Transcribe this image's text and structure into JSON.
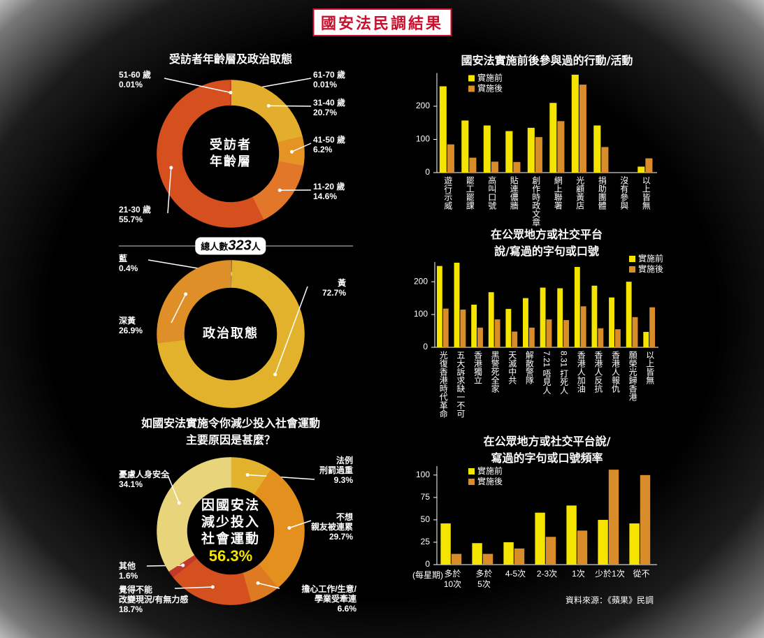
{
  "title": "國安法民調結果",
  "source": "資料來源：《蘋果》民調",
  "chart_data": [
    {
      "type": "donut",
      "title": "受訪者年齡層及政治取態",
      "center_label": "受訪者\n年齡層",
      "categories": [
        "61-70 歲",
        "31-40 歲",
        "41-50 歲",
        "11-20 歲",
        "21-30 歲",
        "51-60 歲"
      ],
      "values": [
        0.01,
        20.7,
        6.2,
        14.6,
        55.7,
        0.01
      ],
      "value_labels": [
        "0.01%",
        "20.7%",
        "6.2%",
        "14.6%",
        "55.7%",
        "0.01%"
      ],
      "colors": [
        "#c0392b",
        "#e3ae2c",
        "#e69326",
        "#e2772a",
        "#d6501f",
        "#c0392b"
      ]
    },
    {
      "type": "donut",
      "total_prefix": "總人數",
      "total": 323,
      "total_suffix": "人",
      "center_label": "政治取態",
      "categories": [
        "藍",
        "黃",
        "深黃"
      ],
      "values": [
        0.4,
        72.7,
        26.9
      ],
      "value_labels": [
        "0.4%",
        "72.7%",
        "26.9%"
      ],
      "colors": [
        "#2d6fb5",
        "#e3b22c",
        "#df8f28"
      ]
    },
    {
      "type": "donut",
      "title": "如國安法實施令你減少投入社會運動\n主要原因是甚麼？",
      "center_label": "因國安法\n減少投入\n社會運動",
      "center_value": 56.3,
      "center_value_label": "56.3%",
      "categories": [
        "法例\n刑罰過重",
        "不想\n親友被連累",
        "擔心工作/生意/\n學業受牽連",
        "覺得不能\n改變現況/有無力感",
        "其他",
        "憂慮人身安全"
      ],
      "values": [
        9.3,
        29.7,
        6.6,
        18.7,
        1.6,
        34.1
      ],
      "value_labels": [
        "9.3%",
        "29.7%",
        "6.6%",
        "18.7%",
        "1.6%",
        "34.1%"
      ],
      "colors": [
        "#e3b22c",
        "#e3901f",
        "#dd7a22",
        "#d5501f",
        "#c0392b",
        "#e8d47a"
      ]
    },
    {
      "type": "bar",
      "title": "國安法實施前後參與過的行動/活動",
      "categories": [
        "遊行示威",
        "罷工罷課",
        "高叫口號",
        "貼連儂牆",
        "創作時政文章",
        "網上聯署",
        "光顧黃店",
        "捐助團體",
        "沒有參與",
        "以上皆無"
      ],
      "series": [
        {
          "name": "實施前",
          "color": "#f5e400",
          "values": [
            260,
            157,
            142,
            125,
            135,
            210,
            295,
            142,
            null,
            18
          ]
        },
        {
          "name": "實施後",
          "color": "#d98c2a",
          "values": [
            85,
            45,
            33,
            32,
            107,
            155,
            265,
            77,
            null,
            43
          ]
        }
      ],
      "ylim": [
        0,
        300
      ],
      "yticks": [
        0,
        100,
        200
      ],
      "legend": "upper left"
    },
    {
      "type": "bar",
      "title": "在公眾地方或社交平台\n說/寫過的字句或口號",
      "categories": [
        "光復香港時代革命",
        "五大訴求缺一不可",
        "香港獨立",
        "黑警死全家",
        "天滅中共",
        "解散警隊",
        "7.21 唔見人",
        "8.31 打死人",
        "香港人加油",
        "香港人反抗",
        "香港人報仇",
        "願榮光歸香港",
        "以上皆無"
      ],
      "series": [
        {
          "name": "實施前",
          "color": "#f5e400",
          "values": [
            248,
            258,
            130,
            168,
            117,
            150,
            182,
            180,
            245,
            188,
            152,
            200,
            47
          ]
        },
        {
          "name": "實施後",
          "color": "#d98c2a",
          "values": [
            118,
            115,
            60,
            85,
            48,
            60,
            85,
            83,
            125,
            58,
            55,
            92,
            122
          ]
        }
      ],
      "ylim": [
        0,
        260
      ],
      "yticks": [
        0,
        100,
        200
      ],
      "legend": "upper right"
    },
    {
      "type": "bar",
      "title": "在公眾地方或社交平台說/\n寫過的字句或口號頻率",
      "xlabel": "(每星期)",
      "categories": [
        "多於\n10次",
        "多於\n5次",
        "4-5次",
        "2-3次",
        "1次",
        "少於1次",
        "從不"
      ],
      "series": [
        {
          "name": "實施前",
          "color": "#f5e400",
          "values": [
            46,
            24,
            25,
            58,
            66,
            50,
            46
          ]
        },
        {
          "name": "實施後",
          "color": "#d98c2a",
          "values": [
            12,
            12,
            18,
            31,
            38,
            106,
            100
          ]
        }
      ],
      "ylim": [
        0,
        110
      ],
      "yticks": [
        0,
        25,
        50,
        75,
        100
      ],
      "legend": "upper left"
    }
  ]
}
